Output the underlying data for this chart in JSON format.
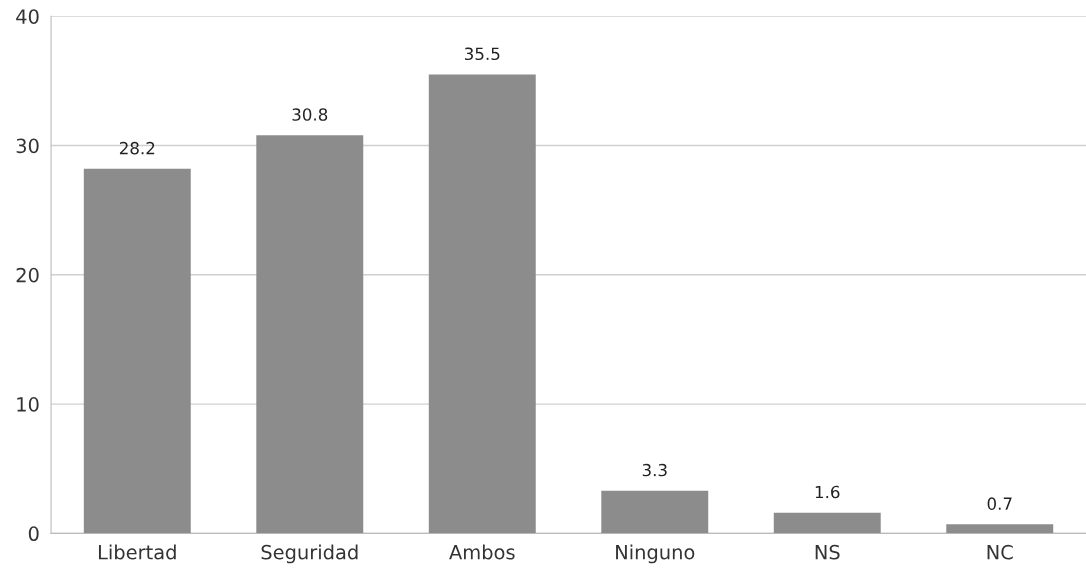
{
  "chart_data": {
    "type": "bar",
    "categories": [
      "Libertad",
      "Seguridad",
      "Ambos",
      "Ninguno",
      "NS",
      "NC"
    ],
    "values": [
      28.2,
      30.8,
      35.5,
      3.3,
      1.6,
      0.7
    ],
    "color": "#8c8c8c",
    "ylim": [
      0,
      40
    ],
    "yticks": [
      0,
      10,
      20,
      30,
      40
    ],
    "grid": "y",
    "data_labels": true
  }
}
